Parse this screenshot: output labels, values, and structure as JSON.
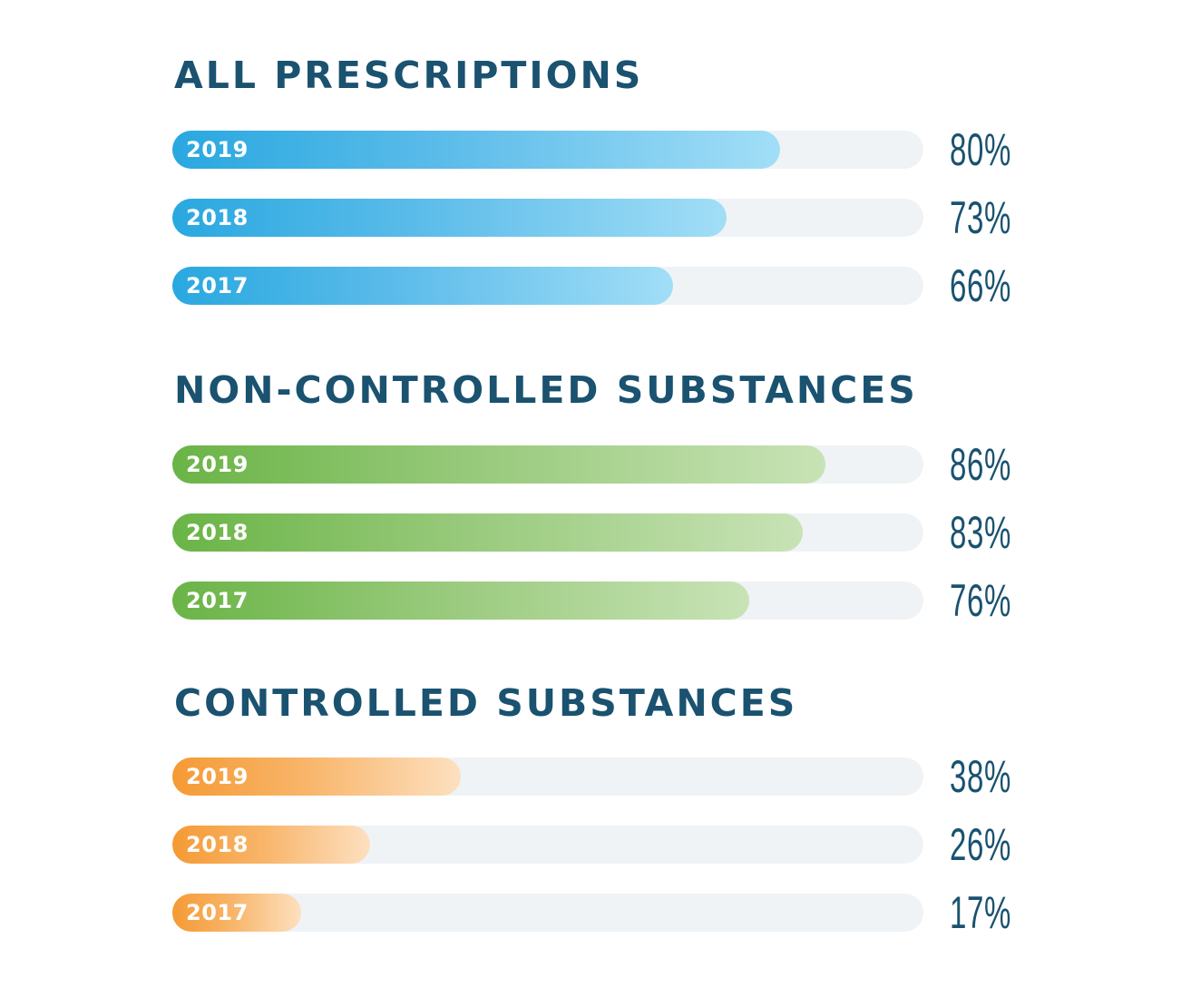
{
  "chart_data": [
    {
      "type": "bar",
      "title": "ALL PRESCRIPTIONS",
      "categories": [
        "2019",
        "2018",
        "2017"
      ],
      "values": [
        80,
        73,
        66
      ],
      "value_labels": [
        "80%",
        "73%",
        "66%"
      ],
      "ylim": [
        0,
        100
      ],
      "color": "#29a8e0"
    },
    {
      "type": "bar",
      "title": "NON-CONTROLLED SUBSTANCES",
      "categories": [
        "2019",
        "2018",
        "2017"
      ],
      "values": [
        86,
        83,
        76
      ],
      "value_labels": [
        "86%",
        "83%",
        "76%"
      ],
      "ylim": [
        0,
        100
      ],
      "color": "#6ab446"
    },
    {
      "type": "bar",
      "title": "CONTROLLED SUBSTANCES",
      "categories": [
        "2019",
        "2018",
        "2017"
      ],
      "values": [
        38,
        26,
        17
      ],
      "value_labels": [
        "38%",
        "26%",
        "17%"
      ],
      "ylim": [
        0,
        100
      ],
      "color": "#f59a34"
    }
  ],
  "colors": {
    "title": "#1a5270",
    "track": "#eff3f6"
  }
}
